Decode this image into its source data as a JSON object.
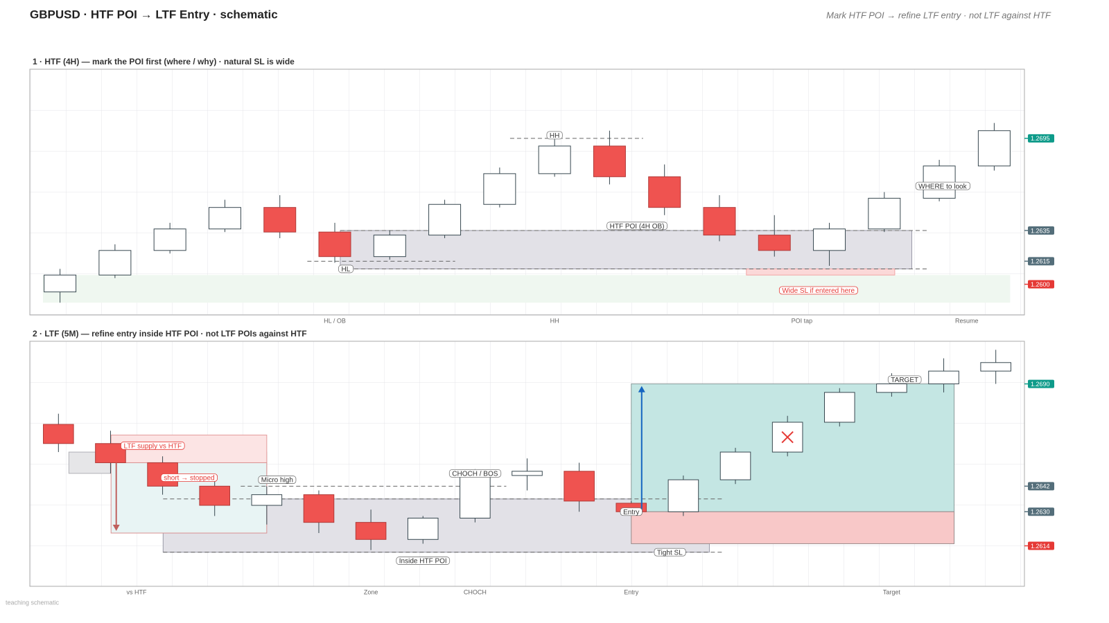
{
  "header": {
    "title": "GBPUSD  ·  HTF POI → LTF Entry  ·  schematic",
    "subtitle": "Mark HTF POI  →  refine LTF entry  ·  not LTF against HTF",
    "footer": "teaching schematic"
  },
  "chart_data": [
    {
      "type": "candlestick",
      "title": "1  ·  HTF (4H)  —  mark the POI first (where / why)  ·  natural SL is wide",
      "x": [
        0,
        1,
        2,
        3,
        4,
        5,
        6,
        7,
        8,
        9,
        10,
        11,
        12,
        13,
        14,
        15,
        16,
        17
      ],
      "open": [
        1.2595,
        1.2606,
        1.2622,
        1.2636,
        1.265,
        1.2634,
        1.2618,
        1.2632,
        1.2652,
        1.2672,
        1.269,
        1.267,
        1.265,
        1.2632,
        1.2622,
        1.2636,
        1.2656,
        1.2677
      ],
      "high": [
        1.261,
        1.2626,
        1.264,
        1.2655,
        1.2658,
        1.264,
        1.2635,
        1.2655,
        1.2676,
        1.2695,
        1.27,
        1.2678,
        1.2658,
        1.2645,
        1.264,
        1.266,
        1.2681,
        1.2705
      ],
      "low": [
        1.2588,
        1.2604,
        1.262,
        1.2634,
        1.263,
        1.2614,
        1.2616,
        1.263,
        1.265,
        1.267,
        1.2665,
        1.2645,
        1.2628,
        1.2618,
        1.2612,
        1.2634,
        1.2654,
        1.2674
      ],
      "close": [
        1.2606,
        1.2622,
        1.2636,
        1.265,
        1.2634,
        1.2618,
        1.2632,
        1.2652,
        1.2672,
        1.269,
        1.267,
        1.265,
        1.2632,
        1.2622,
        1.2636,
        1.2656,
        1.2677,
        1.27
      ],
      "xlim": [
        -0.55,
        17.55
      ],
      "ylim": [
        1.258,
        1.274
      ],
      "xticks": [
        {
          "value": 5,
          "label": "HL / OB"
        },
        {
          "value": 9,
          "label": "HH"
        },
        {
          "value": 13.5,
          "label": "POI tap"
        },
        {
          "value": 16.5,
          "label": "Resume"
        }
      ],
      "colors": {
        "up": "#ffffff",
        "down": "#ef5350",
        "edge": "#37474f"
      },
      "price_tags": [
        {
          "value": 1.2695,
          "color": "#0e9b8a"
        },
        {
          "value": 1.2635,
          "color": "#546e7a"
        },
        {
          "value": 1.2615,
          "color": "#546e7a"
        },
        {
          "value": 1.26,
          "label": "1.2600",
          "color": "#e53935"
        }
      ],
      "zones": [
        {
          "x": [
            -0.31,
            17.29
          ],
          "y": [
            1.2588,
            1.2606
          ],
          "fill": "#eff7f0"
        },
        {
          "x": [
            5.1,
            15.5
          ],
          "y": [
            1.261,
            1.2635
          ],
          "fill": "#e2e1e7",
          "stroke": "#9a9aa8"
        },
        {
          "x": [
            12.49,
            15.19
          ],
          "y": [
            1.2606,
            1.261
          ],
          "fill": "#fbd8d8",
          "stroke": "#f3a5a5"
        }
      ],
      "levels": [
        {
          "y": 1.2635,
          "x": [
            5.1,
            15.81
          ]
        },
        {
          "y": 1.261,
          "x": [
            5.1,
            15.81
          ]
        },
        {
          "y": 1.2695,
          "x": [
            8.19,
            10.61
          ]
        },
        {
          "y": 1.2615,
          "x": [
            4.5,
            7.19
          ]
        }
      ],
      "arrows": [],
      "crosses": [],
      "labels": [
        {
          "text": "HTF POI (4H OB)",
          "x": 10.5,
          "y": 1.2638,
          "color": "#333333"
        },
        {
          "text": "HH",
          "x": 9,
          "y": 1.2697,
          "color": "#333333"
        },
        {
          "text": "HL",
          "x": 5.2,
          "y": 1.261,
          "color": "#333333"
        },
        {
          "text": "Wide SL if entered here",
          "x": 13.8,
          "y": 1.2596,
          "color": "#e53935"
        },
        {
          "text": "WHERE to look",
          "x": 16.06,
          "y": 1.2664,
          "color": "#333333"
        }
      ]
    },
    {
      "type": "candlestick",
      "title": "2  ·  LTF (5M)  —  refine entry inside HTF POI  ·  not LTF POIs against HTF",
      "x": [
        0,
        1,
        2,
        3,
        4,
        5,
        6,
        7,
        8,
        9,
        10,
        11,
        12,
        13,
        14,
        15,
        16,
        17,
        18
      ],
      "open": [
        1.2671,
        1.2662,
        1.2653,
        1.2642,
        1.2633,
        1.2638,
        1.2625,
        1.2617,
        1.2627,
        1.2647,
        1.2649,
        1.2634,
        1.263,
        1.2645,
        1.2658,
        1.2672,
        1.2686,
        1.269,
        1.2696
      ],
      "high": [
        1.2676,
        1.2668,
        1.2656,
        1.2646,
        1.2642,
        1.264,
        1.2631,
        1.2628,
        1.265,
        1.2655,
        1.2653,
        1.2635,
        1.2647,
        1.266,
        1.2675,
        1.2688,
        1.2695,
        1.2702,
        1.2706
      ],
      "low": [
        1.2658,
        1.2648,
        1.2638,
        1.2628,
        1.2624,
        1.262,
        1.2612,
        1.2615,
        1.2625,
        1.264,
        1.263,
        1.263,
        1.2628,
        1.2643,
        1.2656,
        1.267,
        1.2684,
        1.2686,
        1.269
      ],
      "close": [
        1.2662,
        1.2653,
        1.2642,
        1.2633,
        1.2638,
        1.2625,
        1.2617,
        1.2627,
        1.2647,
        1.2649,
        1.2635,
        1.263,
        1.2645,
        1.2658,
        1.2672,
        1.2686,
        1.269,
        1.2696,
        1.27
      ],
      "xlim": [
        -0.55,
        18.55
      ],
      "ylim": [
        1.2595,
        1.271
      ],
      "xticks": [
        {
          "value": 1.5,
          "label": "vs HTF"
        },
        {
          "value": 6,
          "label": "Zone"
        },
        {
          "value": 8,
          "label": "CHOCH"
        },
        {
          "value": 11,
          "label": "Entry"
        },
        {
          "value": 16,
          "label": "Target"
        }
      ],
      "colors": {
        "up": "#ffffff",
        "down": "#ef5350",
        "edge": "#37474f"
      },
      "price_tags": [
        {
          "value": 1.269,
          "label": "1.2690",
          "color": "#0e9b8a"
        },
        {
          "value": 1.2642,
          "color": "#546e7a"
        },
        {
          "value": 1.263,
          "label": "1.2630",
          "color": "#546e7a"
        },
        {
          "value": 1.2614,
          "color": "#e53935"
        }
      ],
      "zones": [
        {
          "x": [
            2.01,
            12.5
          ],
          "y": [
            1.2611,
            1.2636
          ],
          "fill": "#e2e1e7",
          "stroke": "#9a9aa8"
        },
        {
          "x": [
            0.2,
            4.0
          ],
          "y": [
            1.2648,
            1.2658
          ],
          "fill": "#e6e6e8",
          "stroke": "#b0b0b6"
        },
        {
          "x": [
            1.01,
            4.0
          ],
          "y": [
            1.2653,
            1.2666
          ],
          "fill": "#fce4e4",
          "stroke": "#e39a9a"
        },
        {
          "x": [
            1.01,
            4.0
          ],
          "y": [
            1.262,
            1.2653
          ],
          "fill": "#e8f4f4",
          "stroke": "#d99090"
        },
        {
          "x": [
            11.0,
            17.2
          ],
          "y": [
            1.263,
            1.269
          ],
          "fill": "#c4e6e3",
          "stroke": "#8a9a9a"
        },
        {
          "x": [
            11.0,
            17.2
          ],
          "y": [
            1.2615,
            1.263
          ],
          "fill": "#f8c8c8",
          "stroke": "#9a8a8a"
        }
      ],
      "levels": [
        {
          "y": 1.2636,
          "x": [
            2.01,
            12.77
          ]
        },
        {
          "y": 1.2611,
          "x": [
            2.01,
            12.77
          ]
        },
        {
          "y": 1.2642,
          "x": [
            3.5,
            8.6
          ]
        }
      ],
      "arrows": [
        {
          "x": 1.11,
          "y": [
            1.2653,
            1.2621
          ],
          "color": "#c0605d"
        },
        {
          "x": 11.2,
          "y": [
            1.263,
            1.2689
          ],
          "color": "#1565c0"
        }
      ],
      "crosses": [
        {
          "x": 14,
          "y": 1.2665,
          "color": "#e53935"
        }
      ],
      "labels": [
        {
          "text": "LTF supply vs HTF",
          "x": 1.81,
          "y": 1.2661,
          "color": "#e53935"
        },
        {
          "text": "short → stopped",
          "x": 2.51,
          "y": 1.2646,
          "color": "#e53935"
        },
        {
          "text": "Micro high",
          "x": 4.2,
          "y": 1.2645,
          "color": "#333333"
        },
        {
          "text": "CHOCH / BOS",
          "x": 8,
          "y": 1.2648,
          "color": "#333333"
        },
        {
          "text": "Inside HTF POI",
          "x": 7,
          "y": 1.2607,
          "color": "#333333"
        },
        {
          "text": "Entry",
          "x": 11,
          "y": 1.263,
          "color": "#333333"
        },
        {
          "text": "Tight SL",
          "x": 11.74,
          "y": 1.2611,
          "color": "#333333"
        },
        {
          "text": "TARGET",
          "x": 16.25,
          "y": 1.2692,
          "color": "#333333"
        }
      ]
    }
  ]
}
